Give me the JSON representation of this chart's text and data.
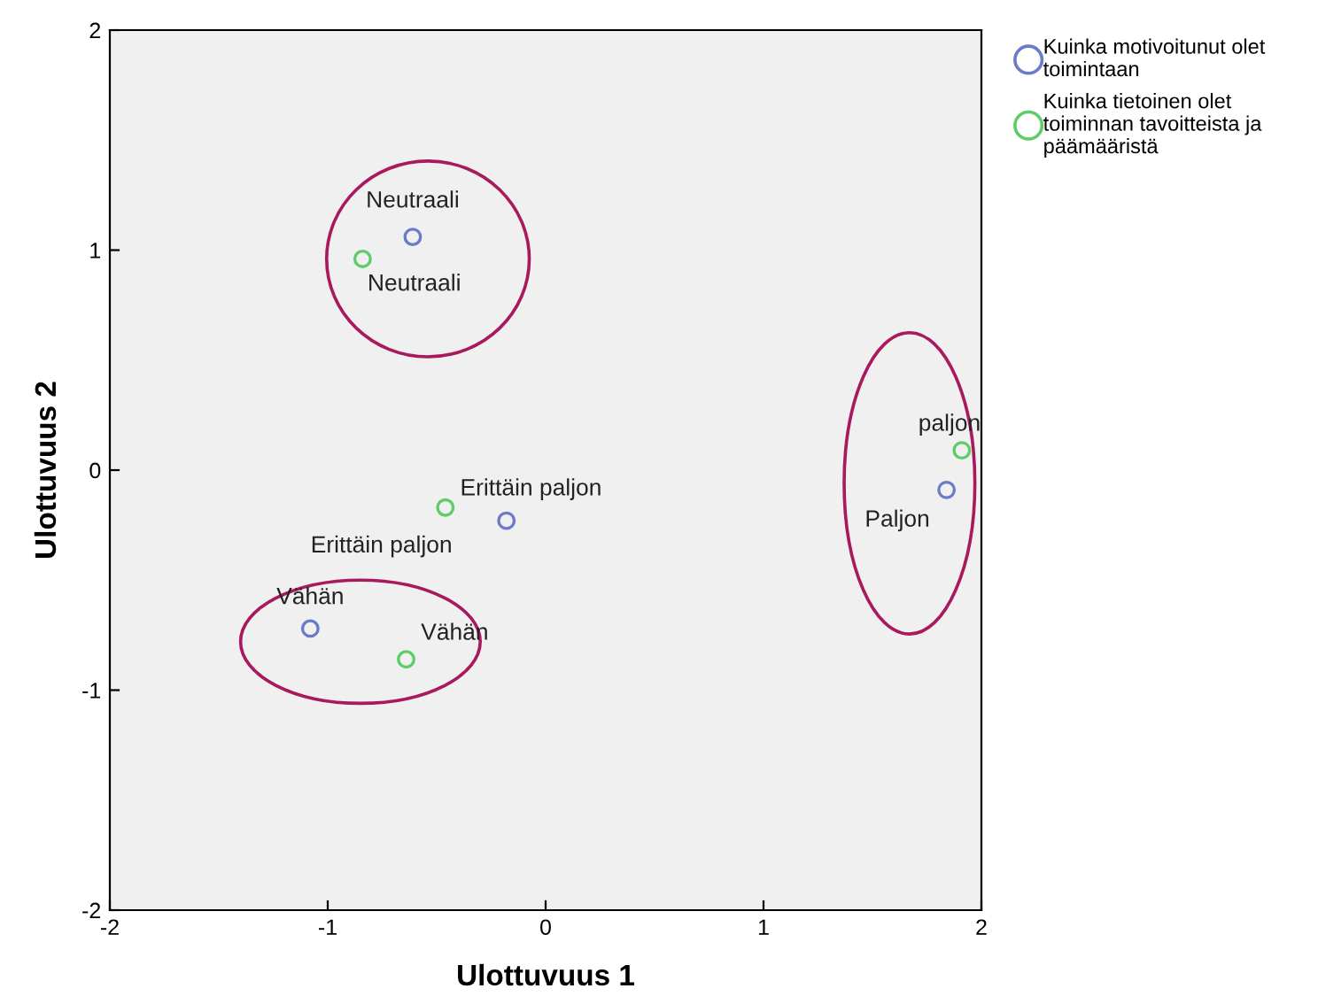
{
  "chart_data": {
    "type": "scatter",
    "xlabel": "Ulottuvuus 1",
    "ylabel": "Ulottuvuus 2",
    "xlim": [
      -2,
      2
    ],
    "ylim": [
      -2,
      2
    ],
    "xticks": [
      -2,
      -1,
      0,
      1,
      2
    ],
    "yticks": [
      -2,
      -1,
      0,
      1,
      2
    ],
    "grid": false,
    "legend": "top right",
    "marker": "circle",
    "series": [
      {
        "name": "Kuinka motivoitunut olet\ntoimintaan",
        "color": "#6a7bc8",
        "x": [
          -0.61,
          -0.18,
          -1.08,
          1.84
        ],
        "values": [
          1.06,
          -0.23,
          -0.72,
          -0.09
        ]
      },
      {
        "name": "Kuinka tietoinen olet\ntoiminnan tavoitteista ja\npäämääristä",
        "color": "#5fcc6a",
        "x": [
          -0.84,
          -0.46,
          -0.64,
          1.91
        ],
        "values": [
          0.96,
          -0.17,
          -0.86,
          0.09
        ]
      }
    ],
    "annotations": [
      {
        "text": "Neutraali",
        "x": -0.61,
        "y": 1.06
      },
      {
        "text": "Erittäin paljon",
        "x": -0.18,
        "y": -0.23
      },
      {
        "text": "Vähän",
        "x": -1.08,
        "y": -0.72
      },
      {
        "text": "Paljon",
        "x": 1.84,
        "y": -0.09
      },
      {
        "text": "Neutraali",
        "x": -0.84,
        "y": 0.96
      },
      {
        "text": "Erittäin paljon",
        "x": -0.46,
        "y": -0.17
      },
      {
        "text": "Vähän",
        "x": -0.64,
        "y": -0.86
      },
      {
        "text": "paljon",
        "x": 1.91,
        "y": 0.09
      }
    ]
  }
}
